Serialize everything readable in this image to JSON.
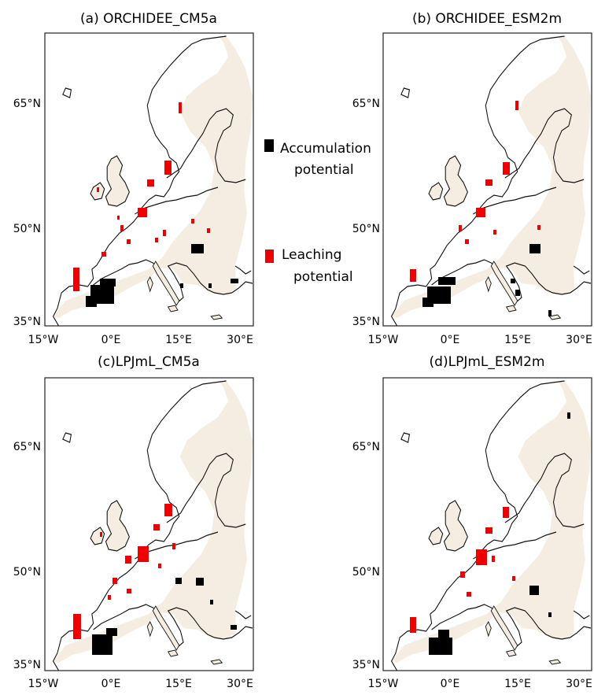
{
  "panels": [
    {
      "title": "(a) ORCHIDEE_CM5a"
    },
    {
      "title": "(b) ORCHIDEE_ESM2m"
    },
    {
      "title": "(c)LPJmL_CM5a"
    },
    {
      "title": "(d)LPJmL_ESM2m"
    }
  ],
  "axes": {
    "lat_ticks": [
      "65°N",
      "50°N",
      "35°N"
    ],
    "lon_ticks": [
      "15°W",
      "0°E",
      "15°E",
      "30°E"
    ]
  },
  "legend": {
    "accumulation": {
      "line1": "Accumulation",
      "line2": "potential",
      "color": "#000000"
    },
    "leaching": {
      "line1": "Leaching",
      "line2": "potential",
      "color": "#ee0000"
    }
  },
  "colors": {
    "land_fill": "#f5ede1",
    "coast": "#111111",
    "accumulation": "#000000",
    "leaching": "#ee0000"
  }
}
